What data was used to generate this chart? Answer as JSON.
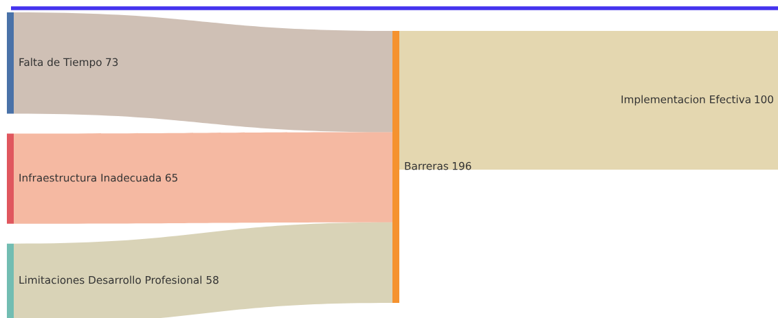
{
  "chart_data": {
    "type": "other",
    "categories": [
      "Falta de Tiempo",
      "Infraestructura Inadecuada",
      "Limitaciones Desarrollo Profesional",
      "Barreras",
      "Implementacion Efectiva"
    ],
    "values": [
      73,
      65,
      58,
      196,
      100
    ],
    "data_labels": true
  }
}
